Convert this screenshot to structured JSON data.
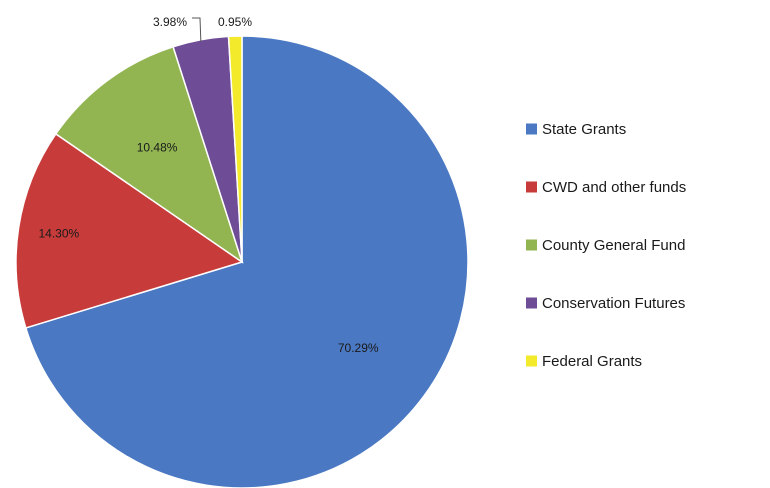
{
  "chart_data": {
    "type": "pie",
    "categories": [
      "State Grants",
      "CWD and other funds",
      "County General Fund",
      "Conservation Futures",
      "Federal Grants"
    ],
    "values": [
      70.29,
      14.3,
      10.48,
      3.98,
      0.95
    ],
    "data_labels": [
      "70.29%",
      "14.30%",
      "10.48%",
      "3.98%",
      "0.95%"
    ],
    "colors": [
      "#4a78c2",
      "#c73c3a",
      "#92b552",
      "#6e4c96",
      "#f2ea2b"
    ],
    "start_angle_deg": 0,
    "direction": "clockwise",
    "legend_position": "right"
  }
}
